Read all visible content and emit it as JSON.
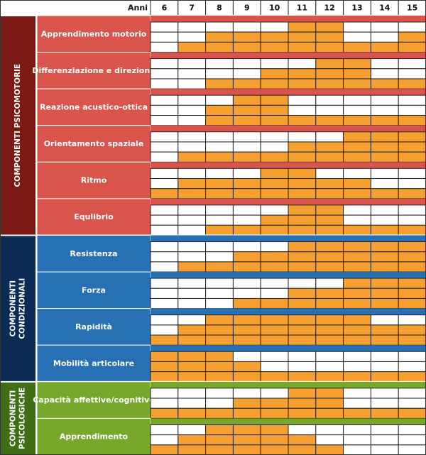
{
  "chart_data": {
    "type": "heatmap",
    "header_label": "Anni",
    "x": [
      "6",
      "7",
      "8",
      "9",
      "10",
      "11",
      "12",
      "13",
      "14",
      "15"
    ],
    "levels_per_row": 3,
    "legend": "none",
    "colors": {
      "filled": "#f5a030",
      "empty": "#ffffff",
      "grid": "#222222",
      "psicomotorie": "#d9544b",
      "psicomotorie_group": "#7a1a12",
      "condizionali": "#2870b4",
      "condizionali_group": "#0a2b55",
      "psicologiche": "#77a82c",
      "psicologiche_group": "#3f6e14"
    },
    "groups": [
      {
        "name": "COMPONENTI PSICOMOTORIE",
        "color_key": "psicomotorie",
        "rows": [
          {
            "label": "Apprendimento motorio",
            "levels": [
              [
                0,
                0,
                0,
                0,
                0,
                1,
                1,
                0,
                0,
                0
              ],
              [
                0,
                0,
                1,
                1,
                1,
                1,
                1,
                0,
                0,
                1
              ],
              [
                0,
                1,
                1,
                1,
                1,
                1,
                1,
                1,
                1,
                1
              ]
            ]
          },
          {
            "label": "Differenziazione e direzione",
            "levels": [
              [
                0,
                0,
                0,
                0,
                0,
                0,
                1,
                1,
                0,
                0
              ],
              [
                0,
                0,
                0,
                0,
                1,
                1,
                1,
                1,
                0,
                0
              ],
              [
                0,
                0,
                1,
                1,
                1,
                1,
                1,
                1,
                1,
                1
              ]
            ]
          },
          {
            "label": "Reazione acustico-ottica",
            "levels": [
              [
                0,
                0,
                0,
                1,
                1,
                0,
                0,
                0,
                0,
                0
              ],
              [
                0,
                0,
                1,
                1,
                1,
                0,
                0,
                0,
                0,
                0
              ],
              [
                0,
                0,
                1,
                1,
                1,
                1,
                1,
                1,
                1,
                1
              ]
            ]
          },
          {
            "label": "Orientamento spaziale",
            "levels": [
              [
                0,
                0,
                0,
                0,
                0,
                0,
                0,
                1,
                1,
                1
              ],
              [
                0,
                0,
                0,
                0,
                0,
                1,
                1,
                1,
                1,
                1
              ],
              [
                0,
                1,
                1,
                1,
                1,
                1,
                1,
                1,
                1,
                1
              ]
            ]
          },
          {
            "label": "Ritmo",
            "levels": [
              [
                0,
                0,
                0,
                0,
                1,
                1,
                0,
                0,
                0,
                0
              ],
              [
                0,
                1,
                1,
                1,
                1,
                1,
                1,
                1,
                0,
                0
              ],
              [
                1,
                1,
                1,
                1,
                1,
                1,
                1,
                1,
                1,
                1
              ]
            ]
          },
          {
            "label": "Equlibrio",
            "levels": [
              [
                0,
                0,
                0,
                0,
                0,
                1,
                1,
                0,
                0,
                0
              ],
              [
                0,
                0,
                0,
                0,
                1,
                1,
                1,
                0,
                0,
                0
              ],
              [
                0,
                0,
                1,
                1,
                1,
                1,
                1,
                1,
                1,
                1
              ]
            ]
          }
        ]
      },
      {
        "name": "COMPONENTI CONDIZIONALI",
        "color_key": "condizionali",
        "rows": [
          {
            "label": "Resistenza",
            "levels": [
              [
                0,
                0,
                0,
                0,
                0,
                1,
                1,
                1,
                1,
                1
              ],
              [
                0,
                0,
                0,
                1,
                1,
                1,
                1,
                1,
                1,
                1
              ],
              [
                0,
                1,
                1,
                1,
                1,
                1,
                1,
                1,
                1,
                1
              ]
            ]
          },
          {
            "label": "Forza",
            "levels": [
              [
                0,
                0,
                0,
                0,
                0,
                0,
                0,
                1,
                1,
                1
              ],
              [
                0,
                0,
                0,
                0,
                0,
                1,
                1,
                1,
                1,
                1
              ],
              [
                0,
                0,
                0,
                1,
                1,
                1,
                1,
                1,
                1,
                1
              ]
            ]
          },
          {
            "label": "Rapidità",
            "levels": [
              [
                0,
                0,
                1,
                1,
                1,
                1,
                1,
                1,
                0,
                0
              ],
              [
                0,
                1,
                1,
                1,
                1,
                1,
                1,
                1,
                1,
                1
              ],
              [
                1,
                1,
                1,
                1,
                1,
                1,
                1,
                1,
                1,
                1
              ]
            ]
          },
          {
            "label": "Mobilità articolare",
            "levels": [
              [
                1,
                1,
                1,
                0,
                0,
                0,
                0,
                0,
                0,
                0
              ],
              [
                1,
                1,
                1,
                1,
                0,
                0,
                0,
                0,
                0,
                0
              ],
              [
                1,
                1,
                1,
                1,
                1,
                1,
                1,
                1,
                1,
                1
              ]
            ]
          }
        ]
      },
      {
        "name": "COMPONENTI PSICOLOGICHE",
        "color_key": "psicologiche",
        "rows": [
          {
            "label": "Capacità affettive/cognitive",
            "levels": [
              [
                0,
                0,
                0,
                0,
                0,
                1,
                1,
                0,
                0,
                0
              ],
              [
                0,
                0,
                0,
                1,
                1,
                1,
                1,
                0,
                0,
                0
              ],
              [
                1,
                1,
                1,
                1,
                1,
                1,
                1,
                1,
                1,
                1
              ]
            ]
          },
          {
            "label": "Apprendimento",
            "levels": [
              [
                0,
                0,
                1,
                1,
                1,
                0,
                0,
                0,
                0,
                0
              ],
              [
                0,
                1,
                1,
                1,
                1,
                1,
                0,
                0,
                0,
                0
              ],
              [
                1,
                1,
                1,
                1,
                1,
                1,
                1,
                0,
                0,
                0
              ]
            ]
          }
        ]
      }
    ]
  }
}
